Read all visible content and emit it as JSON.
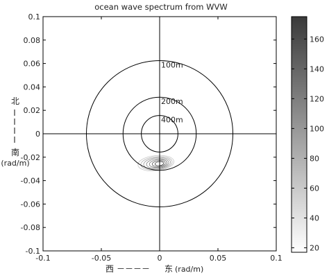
{
  "chart_data": {
    "type": "polar-contour",
    "title": "ocean wave spectrum from WVW",
    "xlabel": "西－－－－东(rad/m)",
    "xlabel_parts": {
      "west": "西",
      "dashes": "－－－－",
      "east": "东",
      "unit": "(rad/m)"
    },
    "ylabel_parts": {
      "north": "北",
      "south": "南",
      "unit": "(rad/m)"
    },
    "xlim": [
      -0.1,
      0.1
    ],
    "ylim": [
      -0.1,
      0.1
    ],
    "xticks": [
      -0.1,
      -0.05,
      0,
      0.05,
      0.1
    ],
    "xtick_labels": [
      "-0.1",
      "-0.05",
      "0",
      "0.05",
      "0.1"
    ],
    "yticks": [
      0.1,
      0.08,
      0.06,
      0.04,
      0.02,
      0,
      -0.02,
      -0.04,
      -0.06,
      -0.08,
      -0.1
    ],
    "ytick_labels": [
      "0.1",
      "0.08",
      "0.06",
      "0.04",
      "0.02",
      "0",
      "-0.02",
      "-0.04",
      "-0.06",
      "-0.08",
      "-0.1"
    ],
    "wavelength_circles": [
      {
        "label": "100m",
        "radius": 0.0628
      },
      {
        "label": "200m",
        "radius": 0.0314
      },
      {
        "label": "400m",
        "radius": 0.0157
      }
    ],
    "spectrum_peak": {
      "kx": -0.002,
      "ky": -0.025
    },
    "colorbar": {
      "range": [
        17,
        175
      ],
      "ticks": [
        20,
        40,
        60,
        80,
        100,
        120,
        140,
        160
      ],
      "tick_labels": [
        "20",
        "40",
        "60",
        "80",
        "100",
        "120",
        "140",
        "160"
      ],
      "colormap": "gray-reversed"
    },
    "grid": false
  }
}
